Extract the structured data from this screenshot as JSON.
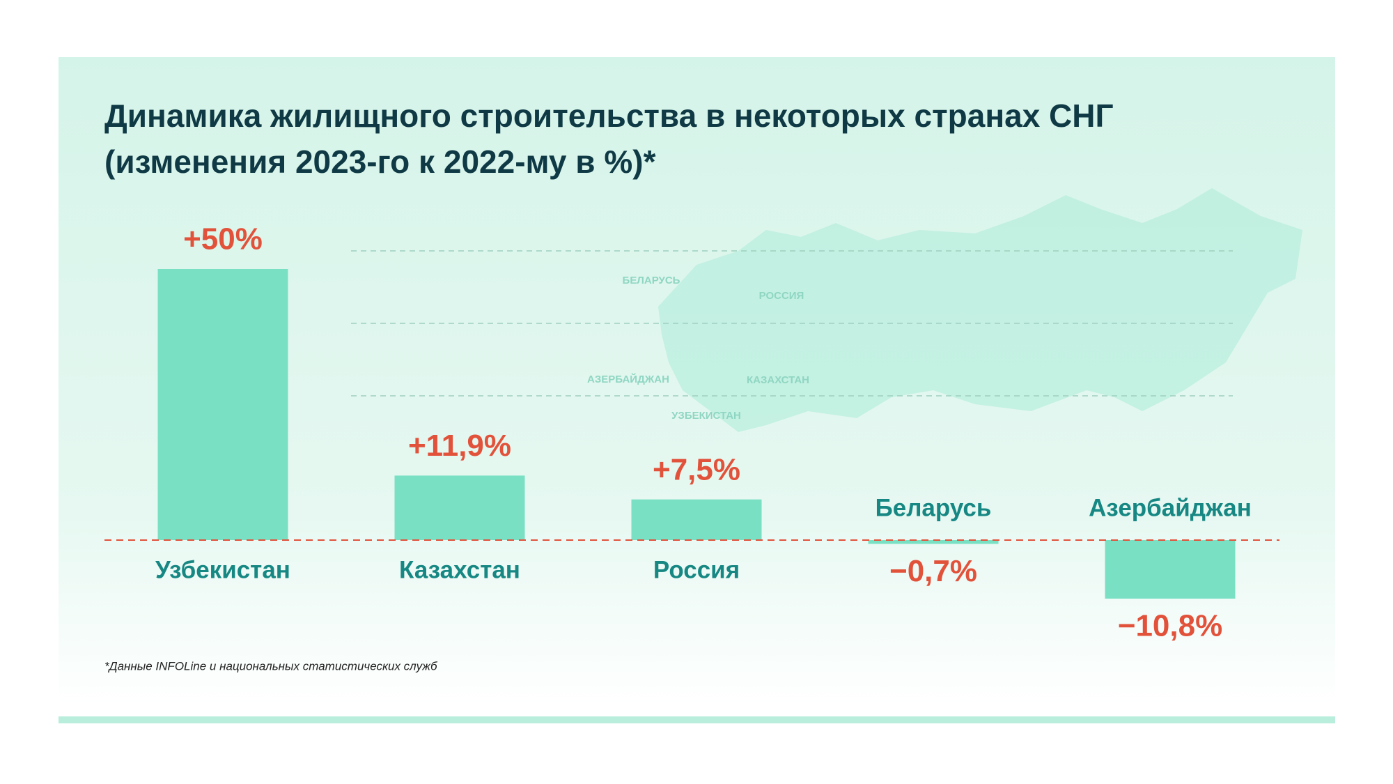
{
  "chart_data": {
    "type": "bar",
    "title": "Динамика жилищного строительства в некоторых странах СНГ",
    "subtitle": "(изменения 2023-го к 2022-му в %)*",
    "categories": [
      "Узбекистан",
      "Казахстан",
      "Россия",
      "Беларусь",
      "Азербайджан"
    ],
    "values": [
      50,
      11.9,
      7.5,
      -0.7,
      -10.8
    ],
    "value_labels": [
      "+50%",
      "+11,9%",
      "+7,5%",
      "−0,7%",
      "−10,8%"
    ],
    "color": "#7ae0c4",
    "map_labels": [
      "БЕЛАРУСЬ",
      "РОССИЯ",
      "АЗЕРБАЙДЖАН",
      "КАЗАХСТАН",
      "УЗБЕКИСТАН"
    ],
    "footnote": "*Данные INFOLine и национальных статистических служб"
  }
}
